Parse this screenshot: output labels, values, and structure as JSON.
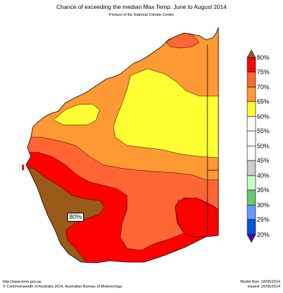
{
  "header": {
    "title": "Chance of exceeding the median Max Temp: June to August 2014",
    "subtitle": "Product of the National Climate Centre"
  },
  "map": {
    "label": "80%",
    "region": "Western Australia"
  },
  "legend": {
    "labels": [
      "80%",
      "75%",
      "70%",
      "65%",
      "60%",
      "55%",
      "50%",
      "45%",
      "40%",
      "35%",
      "30%",
      "25%",
      "20%"
    ],
    "colors": {
      "above80": "#9a5a18",
      "75_80": "#ff0000",
      "70_75": "#ff6633",
      "65_70": "#ff9933",
      "60_65": "#ffff33",
      "55_60": "#ffffff",
      "50_55": "#ffffff",
      "45_50": "#ffffff",
      "40_45": "#cccccc",
      "35_40": "#ccffcc",
      "30_35": "#66cc66",
      "25_30": "#6699ff",
      "20_25": "#0055dd",
      "below20": "#660099"
    }
  },
  "footer": {
    "website": "http://www.bom.gov.au",
    "copyright": "©  Commonwealth of Australia 2014, Australian Bureau of Meteorology",
    "model_run": "Model Run: 18/05/2014",
    "issued": "Issued: 20/05/2014"
  }
}
